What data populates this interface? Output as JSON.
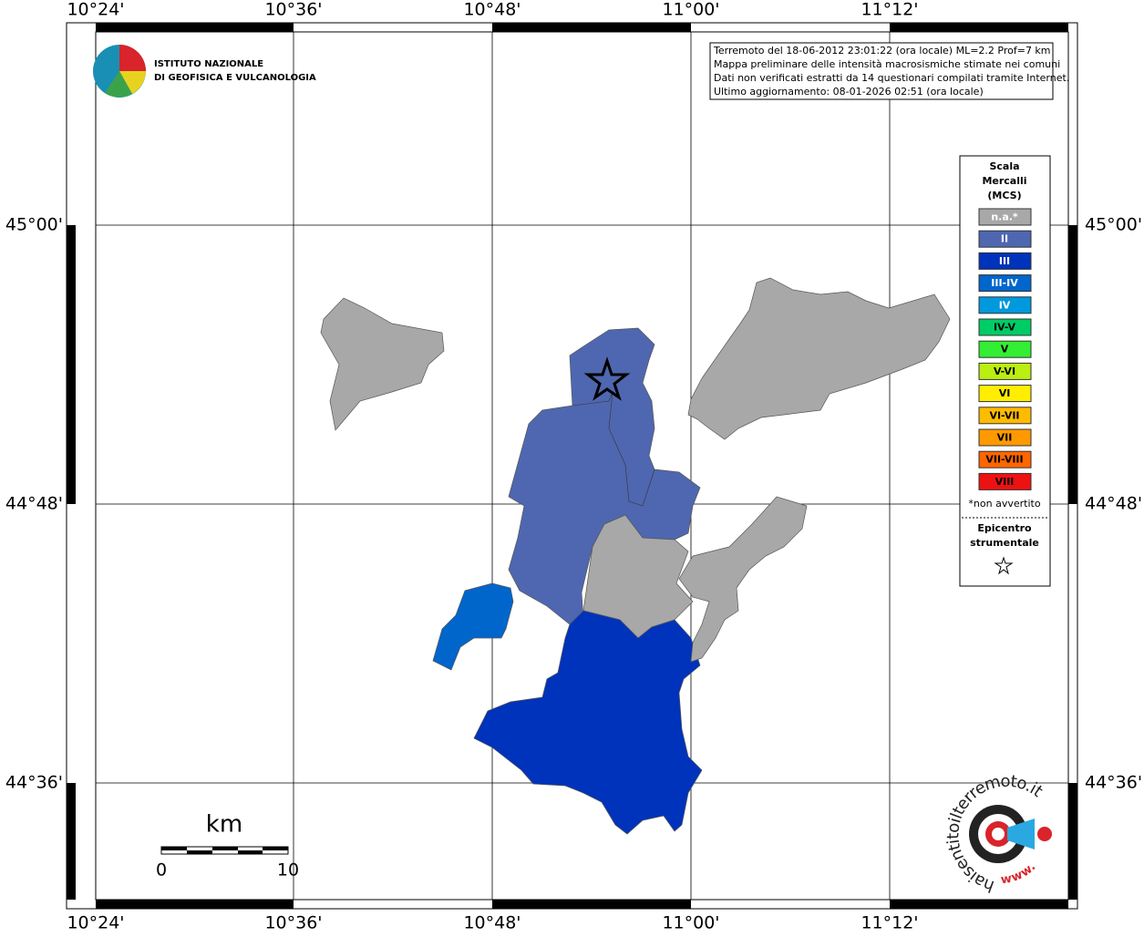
{
  "map": {
    "lon_labels": [
      "10°24'",
      "10°36'",
      "10°48'",
      "11°00'",
      "11°12'"
    ],
    "lat_labels": [
      "45°00'",
      "44°48'",
      "44°36'"
    ],
    "info": [
      "Terremoto del 18-06-2012 23:01:22 (ora locale) ML=2.2 Prof=7 km",
      "Mappa preliminare delle intensità macrosismiche stimate nei comuni",
      "Dati non verificati estratti da 14 questionari compilati tramite Internet.",
      "Ultimo aggiornamento: 08-01-2026 02:51 (ora locale)"
    ],
    "institute": [
      "ISTITUTO NAZIONALE",
      "DI GEOFISICA E VULCANOLOGIA"
    ],
    "legend": {
      "title": [
        "Scala",
        "Mercalli",
        "(MCS)"
      ],
      "items": [
        {
          "label": "n.a.*",
          "color": "#a8a8a8"
        },
        {
          "label": "II",
          "color": "#4f67b0"
        },
        {
          "label": "III",
          "color": "#0033bb"
        },
        {
          "label": "III-IV",
          "color": "#0066cc"
        },
        {
          "label": "IV",
          "color": "#0099dd"
        },
        {
          "label": "IV-V",
          "color": "#00cc66"
        },
        {
          "label": "V",
          "color": "#33ee33"
        },
        {
          "label": "V-VI",
          "color": "#bbee11"
        },
        {
          "label": "VI",
          "color": "#ffee00"
        },
        {
          "label": "VI-VII",
          "color": "#ffbb00"
        },
        {
          "label": "VII",
          "color": "#ff9900"
        },
        {
          "label": "VII-VIII",
          "color": "#ff6600"
        },
        {
          "label": "VIII",
          "color": "#ee1111"
        }
      ],
      "note": "*non avvertito",
      "epicenter": [
        "Epicentro",
        "strumentale"
      ]
    },
    "scale": {
      "unit": "km",
      "labels": [
        "0",
        "10"
      ]
    },
    "logo": {
      "name": "haisentitoilterremoto.it",
      "prefix": "www."
    }
  }
}
